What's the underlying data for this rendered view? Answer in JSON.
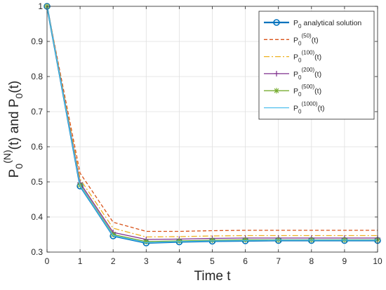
{
  "chart_data": {
    "type": "line",
    "title": "",
    "xlabel": "Time t",
    "ylabel_parts": [
      "P",
      "0",
      "(N)",
      "(t) and P",
      "0",
      "(t)"
    ],
    "xlim": [
      0,
      10
    ],
    "ylim": [
      0.3,
      1.0
    ],
    "xticks": [
      0,
      1,
      2,
      3,
      4,
      5,
      6,
      7,
      8,
      9,
      10
    ],
    "yticks": [
      0.3,
      0.4,
      0.5,
      0.6,
      0.7,
      0.8,
      0.9,
      1.0
    ],
    "xtick_labels": [
      "0",
      "1",
      "2",
      "3",
      "4",
      "5",
      "6",
      "7",
      "8",
      "9",
      "10"
    ],
    "ytick_labels": [
      "0.3",
      "0.4",
      "0.5",
      "0.6",
      "0.7",
      "0.8",
      "0.9",
      "1"
    ],
    "grid": true,
    "legend_position": "top-right",
    "x": [
      0,
      1,
      2,
      3,
      4,
      5,
      6,
      7,
      8,
      9,
      10
    ],
    "series": [
      {
        "legend_base": "P",
        "legend_sub": "0",
        "legend_sup": "",
        "legend_suffix": " analytical solution",
        "color": "#0072BD",
        "dash": "",
        "marker": "circle",
        "values": [
          1.0,
          0.488,
          0.346,
          0.326,
          0.329,
          0.331,
          0.332,
          0.333,
          0.333,
          0.333,
          0.333
        ]
      },
      {
        "legend_base": "P",
        "legend_sub": "0",
        "legend_sup": "(50)",
        "legend_suffix": "(t)",
        "color": "#D95319",
        "dash": "5 3",
        "marker": "none",
        "values": [
          1.0,
          0.525,
          0.385,
          0.359,
          0.359,
          0.361,
          0.362,
          0.362,
          0.362,
          0.362,
          0.362
        ]
      },
      {
        "legend_base": "P",
        "legend_sub": "0",
        "legend_sup": "(100)",
        "legend_suffix": "(t)",
        "color": "#EDB120",
        "dash": "8 3 2 3",
        "marker": "none",
        "values": [
          1.0,
          0.508,
          0.368,
          0.343,
          0.344,
          0.346,
          0.347,
          0.347,
          0.347,
          0.347,
          0.347
        ]
      },
      {
        "legend_base": "P",
        "legend_sub": "0",
        "legend_sup": "(200)",
        "legend_suffix": "(t)",
        "color": "#7E2F8E",
        "dash": "",
        "marker": "plus",
        "values": [
          1.0,
          0.497,
          0.356,
          0.336,
          0.337,
          0.339,
          0.34,
          0.34,
          0.34,
          0.34,
          0.34
        ]
      },
      {
        "legend_base": "P",
        "legend_sub": "0",
        "legend_sup": "(500)",
        "legend_suffix": "(t)",
        "color": "#77AC30",
        "dash": "",
        "marker": "star",
        "values": [
          1.0,
          0.491,
          0.35,
          0.33,
          0.332,
          0.334,
          0.335,
          0.335,
          0.335,
          0.335,
          0.335
        ]
      },
      {
        "legend_base": "P",
        "legend_sub": "0",
        "legend_sup": "(1000)",
        "legend_suffix": "(t)",
        "color": "#4DBEEE",
        "dash": "",
        "marker": "none",
        "values": [
          1.0,
          0.489,
          0.347,
          0.327,
          0.33,
          0.332,
          0.333,
          0.334,
          0.334,
          0.334,
          0.334
        ]
      }
    ]
  }
}
